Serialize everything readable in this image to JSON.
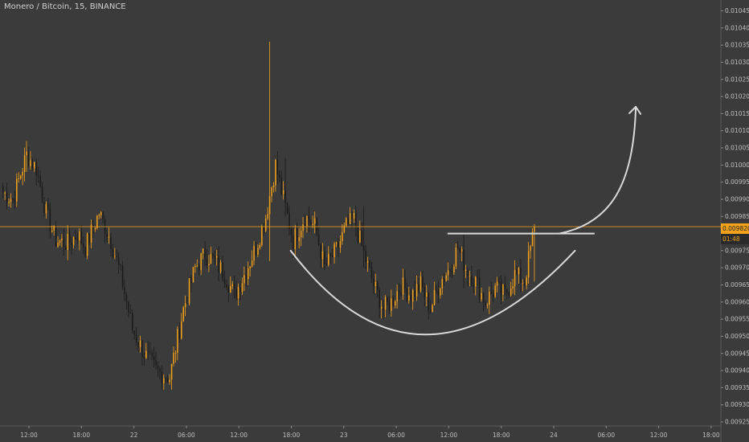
{
  "ticker": "Monero / Bitcoin, 15, BINANCE",
  "price_tag": "0.009820",
  "countdown": "01:48",
  "colors": {
    "background": "#3b3b3b",
    "bull": "#f5a21b",
    "bear": "#1a1a1a",
    "annotation": "#d9d9d9",
    "price_line": "#f5a21b"
  },
  "chart_data": {
    "type": "candlestick",
    "title": "Monero / Bitcoin, 15, BINANCE",
    "xlabel": "",
    "ylabel": "",
    "ylim": [
      0.00925,
      0.01047
    ],
    "x_ticks": [
      "12:00",
      "18:00",
      "22",
      "06:00",
      "12:00",
      "18:00",
      "23",
      "06:00",
      "12:00",
      "18:00",
      "24",
      "06:00",
      "12:00",
      "18:00"
    ],
    "y_ticks": [
      "0.010450",
      "0.010400",
      "0.010350",
      "0.010300",
      "0.010250",
      "0.010200",
      "0.010150",
      "0.010100",
      "0.010050",
      "0.010000",
      "0.009950",
      "0.009900",
      "0.009850",
      "0.009800",
      "0.009750",
      "0.009700",
      "0.009650",
      "0.009600",
      "0.009550",
      "0.009500",
      "0.009450",
      "0.009400",
      "0.009350",
      "0.009300",
      "0.009250"
    ],
    "close_anchors": [
      [
        0,
        0.00992
      ],
      [
        5,
        0.0099
      ],
      [
        12,
        0.01003
      ],
      [
        17,
        0.00999
      ],
      [
        22,
        0.00986
      ],
      [
        27,
        0.00978
      ],
      [
        33,
        0.00977
      ],
      [
        38,
        0.0098
      ],
      [
        42,
        0.00976
      ],
      [
        49,
        0.00986
      ],
      [
        55,
        0.00978
      ],
      [
        60,
        0.00968
      ],
      [
        66,
        0.00952
      ],
      [
        72,
        0.00945
      ],
      [
        78,
        0.0094
      ],
      [
        85,
        0.00938
      ],
      [
        92,
        0.00958
      ],
      [
        98,
        0.0097
      ],
      [
        103,
        0.00974
      ],
      [
        108,
        0.00972
      ],
      [
        113,
        0.00968
      ],
      [
        118,
        0.00962
      ],
      [
        123,
        0.00968
      ],
      [
        129,
        0.00976
      ],
      [
        134,
        0.00985
      ],
      [
        139,
        0.01
      ],
      [
        143,
        0.0099
      ],
      [
        148,
        0.00978
      ],
      [
        154,
        0.00985
      ],
      [
        159,
        0.00982
      ],
      [
        164,
        0.0097
      ],
      [
        170,
        0.00975
      ],
      [
        175,
        0.00982
      ],
      [
        179,
        0.00984
      ],
      [
        184,
        0.00974
      ],
      [
        189,
        0.00965
      ],
      [
        194,
        0.00958
      ],
      [
        198,
        0.0096
      ],
      [
        203,
        0.00965
      ],
      [
        208,
        0.00962
      ],
      [
        213,
        0.00965
      ],
      [
        218,
        0.00958
      ],
      [
        223,
        0.00966
      ],
      [
        228,
        0.0097
      ],
      [
        232,
        0.00976
      ],
      [
        236,
        0.0097
      ],
      [
        241,
        0.00966
      ],
      [
        246,
        0.0096
      ],
      [
        251,
        0.00964
      ],
      [
        256,
        0.00962
      ],
      [
        261,
        0.00968
      ],
      [
        266,
        0.00966
      ],
      [
        271,
        0.00982
      ]
    ],
    "spikes": [
      {
        "bar": 136,
        "high": 0.01036,
        "low": 0.00972
      },
      {
        "bar": 12,
        "high": 0.01007,
        "low": 0.00998
      },
      {
        "bar": 144,
        "high": 0.01002,
        "low": 0.00985
      },
      {
        "bar": 184,
        "high": 0.00988,
        "low": 0.0097
      },
      {
        "bar": 235,
        "high": 0.0098,
        "low": 0.00964
      },
      {
        "bar": 271,
        "high": 0.00982,
        "low": 0.00966
      }
    ],
    "last_price": 0.00982,
    "annotations": [
      {
        "type": "arc",
        "description": "rounded bottom"
      },
      {
        "type": "horizontal-line",
        "description": "resistance",
        "price": 0.0098
      },
      {
        "type": "arrow",
        "description": "projected breakout up"
      }
    ]
  }
}
